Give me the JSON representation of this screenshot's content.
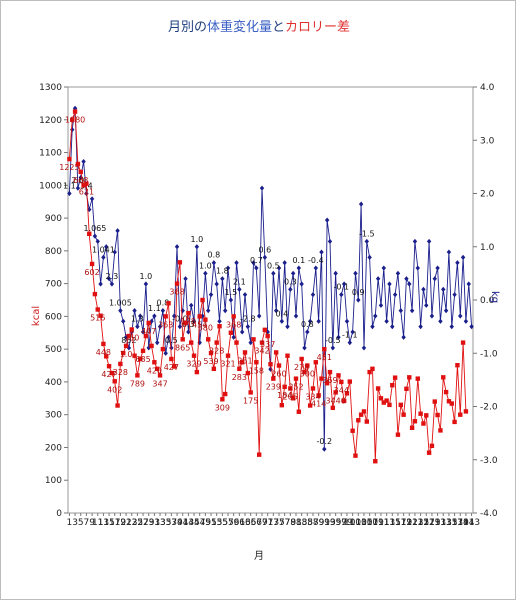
{
  "chart_data": {
    "type": "line",
    "title_parts": [
      {
        "text": "月別の",
        "color": "#1f3f7f"
      },
      {
        "text": "体重変化量",
        "color": "#3a5fc4"
      },
      {
        "text": "と",
        "color": "#1f3f7f"
      },
      {
        "text": "カロリー差",
        "color": "#e03030"
      }
    ],
    "title": "月別の体重変化量とカロリー差",
    "xlabel": "月",
    "ylabel_left": "kcal",
    "ylabel_right": "kg",
    "ylim_left": [
      0,
      1300
    ],
    "ylim_right": [
      -4.0,
      4.0
    ],
    "y_ticks_left": [
      "0",
      "100",
      "200",
      "300",
      "400",
      "500",
      "600",
      "700",
      "800",
      "900",
      "1000",
      "1100",
      "1200",
      "1300"
    ],
    "y_ticks_right": [
      "-4.0",
      "-3.0",
      "-2.0",
      "-1.0",
      "0.0",
      "1.0",
      "2.0",
      "3.0",
      "4.0"
    ],
    "x_tick_labels": [
      "1",
      "3",
      "5",
      "7",
      "9",
      "11",
      "13",
      "15",
      "17",
      "19",
      "21",
      "23",
      "25",
      "27",
      "29",
      "31",
      "33",
      "35",
      "37",
      "39",
      "41",
      "43",
      "45",
      "47",
      "49",
      "51",
      "53",
      "55",
      "57",
      "59",
      "61",
      "63",
      "65",
      "67",
      "69",
      "71",
      "73",
      "75",
      "77",
      "79",
      "81",
      "83",
      "85",
      "87",
      "89",
      "91",
      "93",
      "95",
      "97",
      "99",
      "101",
      "103",
      "105",
      "107",
      "109",
      "111",
      "113",
      "115",
      "117",
      "119",
      "121",
      "123",
      "125",
      "127",
      "129",
      "131",
      "133",
      "135",
      "137",
      "139",
      "141",
      "143"
    ],
    "series": [
      {
        "axis": "right",
        "color": "#1a1f8c",
        "marker": "diamond",
        "values": [
          2.0,
          3.2,
          3.6,
          2.1,
          2.3,
          2.6,
          2.0,
          1.7,
          1.9,
          1.2,
          1.1,
          0.3,
          0.8,
          1.0,
          0.4,
          0.3,
          0.9,
          1.3,
          -0.2,
          -0.4,
          -0.7,
          -0.9,
          -0.6,
          -0.2,
          -0.5,
          -0.3,
          -0.6,
          0.3,
          -0.9,
          -0.4,
          -0.3,
          -0.8,
          -0.5,
          -0.2,
          -1.0,
          -0.7,
          -0.9,
          -0.3,
          1.0,
          -0.5,
          -0.2,
          0.4,
          -0.6,
          -0.1,
          -0.4,
          1.0,
          -0.8,
          -0.3,
          0.5,
          -0.2,
          0.1,
          0.7,
          0.3,
          -0.4,
          0.4,
          -0.2,
          0.6,
          0.0,
          -0.7,
          0.7,
          0.2,
          -0.6,
          0.1,
          -0.5,
          -0.8,
          0.7,
          0.6,
          -0.3,
          2.1,
          0.8,
          -0.6,
          -1.3,
          0.5,
          -0.2,
          0.6,
          -0.4,
          0.7,
          -0.5,
          0.2,
          0.5,
          -0.3,
          0.6,
          0.3,
          -0.9,
          -0.6,
          -0.4,
          0.1,
          0.6,
          -0.4,
          0.9,
          -2.8,
          1.5,
          1.1,
          -0.9,
          0.5,
          -0.7,
          0.1,
          0.3,
          -0.4,
          -0.8,
          -0.6,
          0.5,
          0.0,
          1.8,
          -0.9,
          1.1,
          0.8,
          -0.5,
          -0.3,
          0.4,
          -0.1,
          0.6,
          -0.4,
          0.3,
          -0.5,
          0.1,
          0.5,
          -0.2,
          -0.7,
          0.4,
          0.3,
          -0.2,
          1.1,
          0.6,
          -0.5,
          0.2,
          -0.1,
          1.1,
          -0.3,
          0.4,
          0.6,
          -0.4,
          0.2,
          -0.2,
          0.9,
          -0.5,
          0.1,
          0.7,
          -0.3,
          0.8,
          -0.4,
          0.3,
          -0.5
        ],
        "shown_labels": [
          "1.1",
          "2.0",
          "3.4",
          "1.065",
          "1.041",
          "2.3",
          "1.005",
          "852",
          "1.3",
          "1.0",
          "1.1",
          "0.8",
          "0.5",
          "-0.0",
          "0.3",
          "1.0",
          "1.0",
          "0.8",
          "1.8",
          "1.5",
          "2.1",
          "-2.8",
          "0.7",
          "0.6",
          "0.5",
          "0.4",
          "0.3",
          "0.1",
          "0.8",
          "-0.4",
          "-0.2",
          "-0.5",
          "-0.1",
          "-1.1",
          "0.9",
          "-1.5"
        ]
      },
      {
        "axis": "left",
        "color": "#e01010",
        "marker": "square",
        "values": [
          1080,
          1200,
          1225,
          1065,
          1041,
          1000,
          1005,
          852,
          760,
          668,
          621,
          602,
          516,
          478,
          448,
          427,
          402,
          328,
          455,
          488,
          510,
          540,
          560,
          480,
          420,
          470,
          495,
          540,
          580,
          510,
          460,
          440,
          420,
          500,
          600,
          640,
          470,
          447,
          700,
          765,
          530,
          580,
          610,
          520,
          480,
          430,
          600,
          650,
          590,
          530,
          488,
          440,
          520,
          570,
          347,
          363,
          480,
          550,
          600,
          520,
          440,
          460,
          490,
          427,
          368,
          530,
          460,
          178,
          520,
          559,
          540,
          454,
          410,
          490,
          450,
          329,
          385,
          480,
          380,
          350,
          410,
          309,
          470,
          430,
          450,
          328,
          380,
          460,
          359,
          410,
          500,
          396,
          430,
          321,
          368,
          420,
          400,
          342,
          365,
          401,
          251,
          175,
          283,
          300,
          310,
          279,
          430,
          440,
          158,
          380,
          350,
          337,
          343,
          330,
          390,
          413,
          239,
          330,
          300,
          379,
          414,
          260,
          280,
          410,
          303,
          273,
          298,
          184,
          205,
          340,
          299,
          252,
          414,
          369,
          341,
          334,
          278,
          451,
          300,
          520,
          310
        ],
        "shown_labels": [
          "1225",
          "1080",
          "668",
          "621",
          "602",
          "516",
          "448",
          "427",
          "402",
          "328",
          "1.0",
          "760",
          "789",
          "685",
          "447",
          "420",
          "347",
          "363",
          "427",
          "368",
          "865",
          "178",
          "329",
          "454",
          "580",
          "539",
          "328",
          "309",
          "321",
          "368",
          "283",
          "251",
          "175",
          "158",
          "342",
          "337",
          "239",
          "260",
          "184",
          "205",
          "252",
          "278",
          "300",
          "334",
          "414",
          "451",
          "369",
          "3440",
          "344"
        ]
      }
    ]
  }
}
